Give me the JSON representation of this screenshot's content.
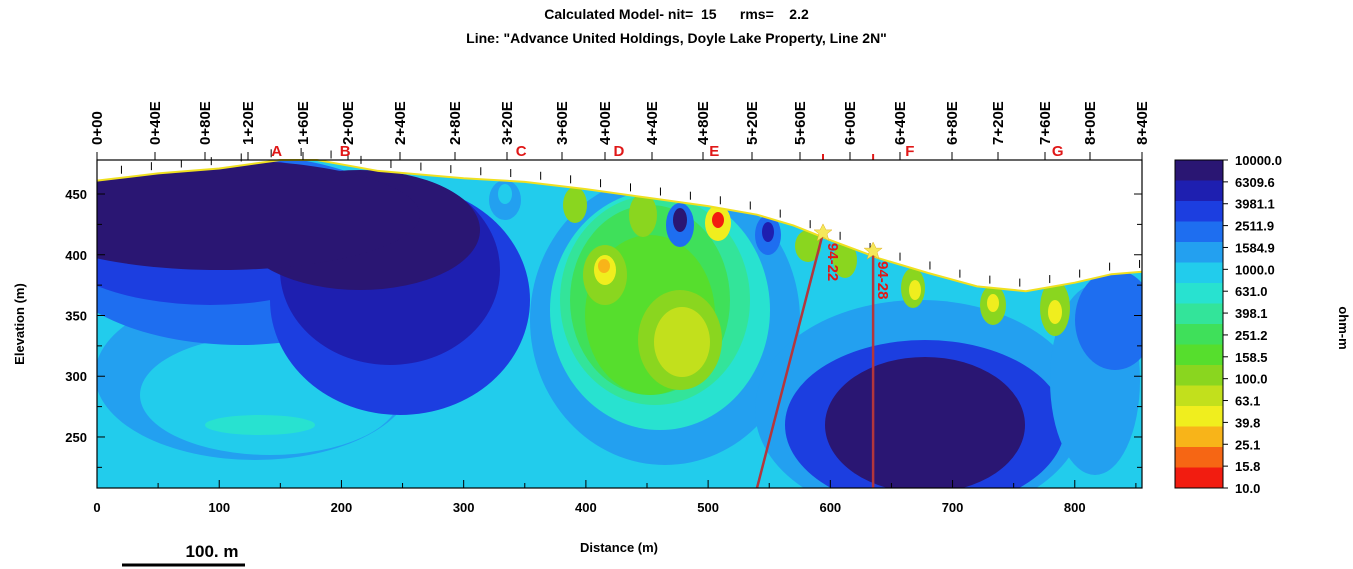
{
  "title_line1": "Calculated Model- nit=  15      rms=    2.2",
  "title_line2": "Line: \"Advance United Holdings, Doyle Lake Property, Line 2N\"",
  "chart_data": {
    "type": "heatmap",
    "xlabel": "Distance (m)",
    "ylabel": "Elevation (m)",
    "xlim": [
      0,
      855
    ],
    "ylim": [
      208,
      478
    ],
    "x_ticks": [
      0,
      100,
      200,
      300,
      400,
      500,
      600,
      700,
      800
    ],
    "y_ticks": [
      250,
      300,
      350,
      400,
      450
    ],
    "station_labels": [
      "0+00",
      "0+40E",
      "0+80E",
      "1+20E",
      "1+60E",
      "2+00E",
      "2+40E",
      "2+80E",
      "3+20E",
      "3+60E",
      "4+00E",
      "4+40E",
      "4+80E",
      "5+20E",
      "5+60E",
      "6+00E",
      "6+40E",
      "6+80E",
      "7+20E",
      "7+60E",
      "8+00E",
      "8+40E"
    ],
    "station_x": [
      0,
      49,
      98,
      146,
      171,
      200,
      249,
      298,
      347,
      396,
      407,
      445,
      494,
      537,
      571,
      617,
      658,
      703,
      742,
      782,
      812,
      855
    ],
    "anomalies": [
      {
        "label": "A",
        "x": 147
      },
      {
        "label": "B",
        "x": 203
      },
      {
        "label": "C",
        "x": 347
      },
      {
        "label": "D",
        "x": 427
      },
      {
        "label": "E",
        "x": 505
      },
      {
        "label": "F",
        "x": 665
      },
      {
        "label": "G",
        "x": 786
      }
    ],
    "drillholes": [
      {
        "label": "94-22",
        "collar": [
          594,
          418
        ],
        "toe": [
          540,
          208
        ]
      },
      {
        "label": "94-28",
        "collar": [
          635,
          403
        ],
        "toe": [
          635,
          208
        ]
      }
    ],
    "topography": [
      [
        0,
        461
      ],
      [
        50,
        467
      ],
      [
        100,
        471
      ],
      [
        150,
        478
      ],
      [
        180,
        478
      ],
      [
        230,
        469
      ],
      [
        300,
        463
      ],
      [
        350,
        460
      ],
      [
        400,
        454
      ],
      [
        450,
        447
      ],
      [
        500,
        440
      ],
      [
        540,
        433
      ],
      [
        570,
        424
      ],
      [
        600,
        412
      ],
      [
        640,
        397
      ],
      [
        680,
        385
      ],
      [
        720,
        374
      ],
      [
        760,
        370
      ],
      [
        800,
        377
      ],
      [
        830,
        384
      ],
      [
        855,
        386
      ]
    ],
    "colorbar": {
      "label": "ohm-m",
      "values": [
        "10000.0",
        "6309.6",
        "3981.1",
        "2511.9",
        "1584.9",
        "1000.0",
        "631.0",
        "398.1",
        "251.2",
        "158.5",
        "100.0",
        "63.1",
        "39.8",
        "25.1",
        "15.8",
        "10.0"
      ],
      "colors": [
        "#2a1673",
        "#1e1fb0",
        "#1c3ee0",
        "#1e6ef0",
        "#23a0f0",
        "#22ccec",
        "#28e2d0",
        "#33e49a",
        "#3fe05a",
        "#56de2d",
        "#8ad61f",
        "#c2e01c",
        "#f0ee1e",
        "#f8b419",
        "#f66614",
        "#f21c10"
      ]
    },
    "scale_bar": "100. m",
    "grid": false
  }
}
